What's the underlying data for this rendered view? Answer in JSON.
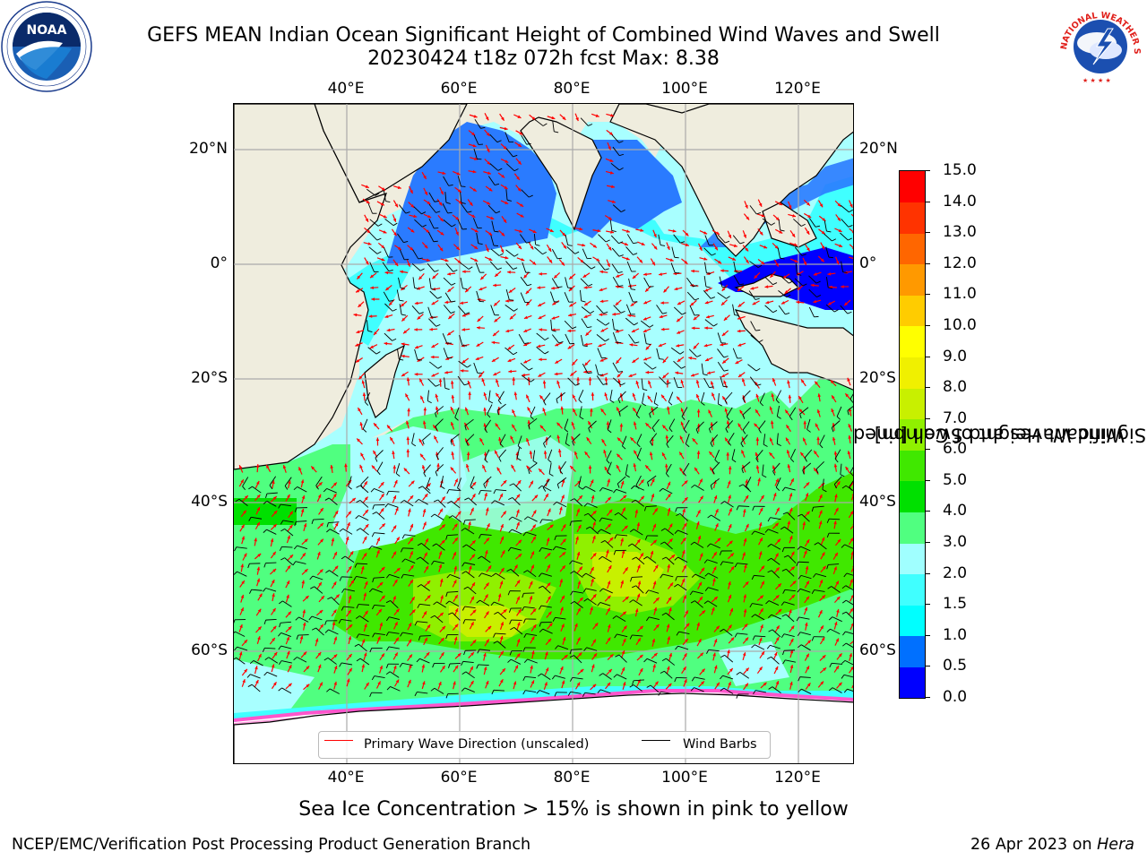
{
  "title_line1": "GEFS MEAN Indian Ocean Significant Height of Combined Wind Waves and Swell",
  "title_line2": "20230424 t18z 072h fcst   Max: 8.38",
  "logos": {
    "noaa": {
      "text": "NOAA",
      "ring_text": "NATIONAL OCEANIC AND ATMOSPHERIC ADMINISTRATION • U.S. DEPARTMENT OF COMMERCE"
    },
    "nws": {
      "ring_text": "NATIONAL WEATHER SERVICE"
    }
  },
  "map": {
    "lon_ticks": [
      "40°E",
      "60°E",
      "80°E",
      "100°E",
      "120°E"
    ],
    "lat_ticks_left": [
      "20°N",
      "0°",
      "20°S",
      "40°S",
      "60°S"
    ],
    "lat_ticks_right": [
      "20°N",
      "0°",
      "20°S",
      "40°S",
      "60°S"
    ],
    "land_color": "#efedde",
    "grid_color": "#aaaaaa"
  },
  "legend": {
    "primary_wave": "Primary Wave Direction (unscaled)",
    "wind_barbs": "Wind Barbs",
    "primary_wave_color": "#ff0000",
    "wind_barbs_color": "#000000"
  },
  "colorbar": {
    "label_line1": "Significant Height of Combined",
    "label_line2": "Wind Waves and Swell [m]",
    "ticks": [
      "0.0",
      "0.5",
      "1.0",
      "1.5",
      "2.0",
      "3.0",
      "4.0",
      "5.0",
      "6.0",
      "7.0",
      "8.0",
      "9.0",
      "10.0",
      "11.0",
      "12.0",
      "13.0",
      "14.0",
      "15.0"
    ],
    "colors": [
      "#0000ff",
      "#0070ff",
      "#00ffff",
      "#40ffff",
      "#a0ffff",
      "#50ff80",
      "#00e000",
      "#40e800",
      "#90f000",
      "#c8f000",
      "#f0f000",
      "#ffff00",
      "#ffcc00",
      "#ff9900",
      "#ff6600",
      "#ff3300",
      "#ff0000"
    ]
  },
  "ice_note": "Sea Ice Concentration > 15% is shown in pink to yellow",
  "footer": {
    "left": "NCEP/EMC/Verification Post Processing Product Generation Branch",
    "right_date": "26 Apr 2023 on",
    "right_host": "Hera"
  }
}
